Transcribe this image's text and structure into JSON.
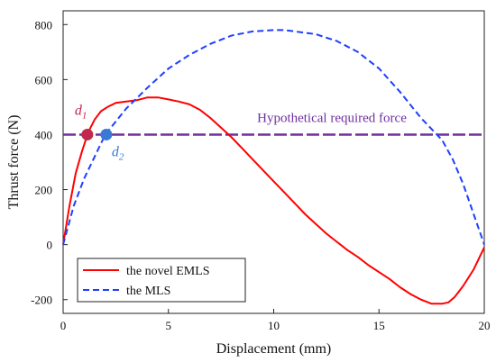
{
  "chart_data": {
    "type": "line",
    "title": "",
    "xlabel": "Displacement (mm)",
    "ylabel": "Thrust force (N)",
    "xlim": [
      0,
      20
    ],
    "ylim": [
      -250,
      850
    ],
    "xticks": [
      0,
      5,
      10,
      15,
      20
    ],
    "yticks": [
      -200,
      0,
      200,
      400,
      600,
      800
    ],
    "grid": false,
    "legend_position": "bottom-left",
    "series": [
      {
        "name": "the novel EMLS",
        "color": "#ff0000",
        "dash": "solid",
        "x": [
          0,
          0.3,
          0.6,
          0.9,
          1.2,
          1.5,
          1.8,
          2.1,
          2.5,
          3.0,
          3.5,
          4.0,
          4.5,
          5.0,
          5.5,
          6.0,
          6.5,
          7.0,
          7.5,
          8.0,
          8.5,
          9.0,
          9.5,
          10.0,
          10.5,
          11.0,
          11.5,
          12.0,
          12.5,
          13.0,
          13.5,
          14.0,
          14.5,
          15.0,
          15.5,
          16.0,
          16.5,
          17.0,
          17.5,
          18.0,
          18.3,
          18.6,
          19.0,
          19.5,
          20.0
        ],
        "y": [
          0,
          140,
          260,
          340,
          410,
          455,
          485,
          500,
          515,
          520,
          525,
          535,
          535,
          528,
          520,
          510,
          490,
          460,
          425,
          390,
          350,
          310,
          270,
          230,
          190,
          150,
          110,
          75,
          40,
          10,
          -20,
          -45,
          -75,
          -100,
          -125,
          -155,
          -180,
          -200,
          -215,
          -215,
          -210,
          -190,
          -150,
          -90,
          -10
        ]
      },
      {
        "name": "the MLS",
        "color": "#1f3fff",
        "dash": "dashed",
        "x": [
          0,
          0.5,
          1.0,
          1.5,
          2.0,
          3.0,
          4.0,
          5.0,
          6.0,
          7.0,
          8.0,
          9.0,
          10.0,
          10.5,
          11.0,
          12.0,
          13.0,
          14.0,
          15.0,
          16.0,
          17.0,
          18.0,
          18.5,
          19.0,
          19.5,
          20.0
        ],
        "y": [
          0,
          140,
          240,
          320,
          400,
          495,
          570,
          640,
          690,
          730,
          760,
          775,
          780,
          780,
          775,
          765,
          740,
          700,
          640,
          555,
          460,
          380,
          310,
          220,
          110,
          0
        ]
      }
    ],
    "reference_line": {
      "y": 400,
      "label": "Hypothetical required force",
      "color": "#7030a0"
    },
    "markers": [
      {
        "label": "d",
        "subscript": "1",
        "x": 1.15,
        "y": 400,
        "color": "#c0284c"
      },
      {
        "label": "d",
        "subscript": "2",
        "x": 2.05,
        "y": 400,
        "color": "#3b78d6"
      }
    ]
  }
}
